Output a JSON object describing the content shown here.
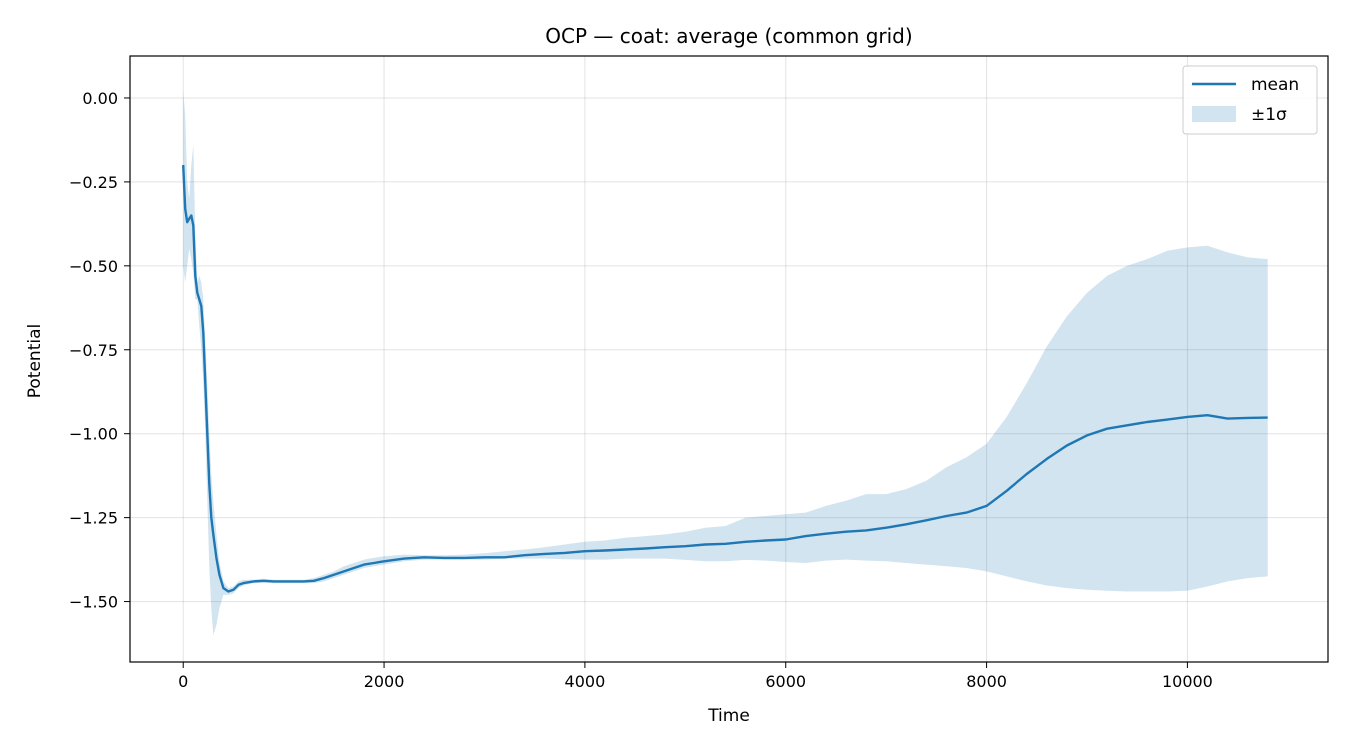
{
  "chart_data": {
    "type": "line",
    "title": "OCP — coat: average (common grid)",
    "xlabel": "Time",
    "ylabel": "Potential",
    "xlim": [
      -530,
      11400
    ],
    "ylim": [
      -1.68,
      0.125
    ],
    "xticks": [
      0,
      2000,
      4000,
      6000,
      8000,
      10000
    ],
    "yticks": [
      0.0,
      -0.25,
      -0.5,
      -0.75,
      -1.0,
      -1.25,
      -1.5
    ],
    "xtick_labels": [
      "0",
      "2000",
      "4000",
      "6000",
      "8000",
      "10000"
    ],
    "ytick_labels": [
      "0.00",
      "−0.25",
      "−0.50",
      "−0.75",
      "−1.00",
      "−1.25",
      "−1.50"
    ],
    "grid": true,
    "legend_position": "top-right",
    "colors": {
      "mean": "#1f77b4",
      "band": "#1f77b4",
      "band_opacity": 0.2
    },
    "series": [
      {
        "name": "mean",
        "kind": "line",
        "x": [
          0,
          20,
          40,
          60,
          80,
          100,
          120,
          140,
          160,
          180,
          200,
          220,
          240,
          260,
          280,
          300,
          330,
          360,
          400,
          450,
          500,
          550,
          600,
          700,
          800,
          900,
          1000,
          1100,
          1200,
          1300,
          1400,
          1500,
          1600,
          1700,
          1800,
          1900,
          2000,
          2200,
          2400,
          2600,
          2800,
          3000,
          3200,
          3400,
          3600,
          3800,
          4000,
          4200,
          4400,
          4600,
          4800,
          5000,
          5200,
          5400,
          5600,
          5800,
          6000,
          6200,
          6400,
          6600,
          6800,
          7000,
          7200,
          7400,
          7600,
          7800,
          8000,
          8200,
          8400,
          8600,
          8800,
          9000,
          9200,
          9400,
          9600,
          9800,
          10000,
          10200,
          10400,
          10600,
          10800
        ],
        "values": [
          -0.2,
          -0.33,
          -0.37,
          -0.36,
          -0.35,
          -0.38,
          -0.53,
          -0.58,
          -0.6,
          -0.62,
          -0.7,
          -0.85,
          -1.0,
          -1.15,
          -1.25,
          -1.3,
          -1.37,
          -1.42,
          -1.46,
          -1.47,
          -1.465,
          -1.45,
          -1.445,
          -1.44,
          -1.438,
          -1.44,
          -1.44,
          -1.44,
          -1.44,
          -1.438,
          -1.43,
          -1.42,
          -1.41,
          -1.4,
          -1.39,
          -1.385,
          -1.38,
          -1.372,
          -1.368,
          -1.37,
          -1.37,
          -1.368,
          -1.368,
          -1.362,
          -1.358,
          -1.355,
          -1.35,
          -1.348,
          -1.345,
          -1.342,
          -1.338,
          -1.335,
          -1.33,
          -1.328,
          -1.322,
          -1.318,
          -1.315,
          -1.305,
          -1.298,
          -1.292,
          -1.288,
          -1.28,
          -1.27,
          -1.258,
          -1.245,
          -1.235,
          -1.215,
          -1.17,
          -1.12,
          -1.075,
          -1.035,
          -1.005,
          -0.985,
          -0.975,
          -0.965,
          -0.958,
          -0.95,
          -0.945,
          -0.955,
          -0.953,
          -0.952
        ]
      },
      {
        "name": "±1σ",
        "kind": "band",
        "x": [
          0,
          20,
          40,
          60,
          80,
          100,
          120,
          140,
          160,
          180,
          200,
          220,
          240,
          260,
          280,
          300,
          330,
          360,
          400,
          450,
          500,
          550,
          600,
          700,
          800,
          900,
          1000,
          1100,
          1200,
          1300,
          1400,
          1500,
          1600,
          1700,
          1800,
          1900,
          2000,
          2200,
          2400,
          2600,
          2800,
          3000,
          3200,
          3400,
          3600,
          3800,
          4000,
          4200,
          4400,
          4600,
          4800,
          5000,
          5200,
          5400,
          5600,
          5800,
          6000,
          6200,
          6400,
          6600,
          6800,
          7000,
          7200,
          7400,
          7600,
          7800,
          8000,
          8200,
          8400,
          8600,
          8800,
          9000,
          9200,
          9400,
          9600,
          9800,
          10000,
          10200,
          10400,
          10600,
          10800
        ],
        "upper": [
          0.02,
          -0.05,
          -0.25,
          -0.3,
          -0.2,
          -0.14,
          -0.4,
          -0.55,
          -0.53,
          -0.55,
          -0.6,
          -0.72,
          -0.85,
          -1.0,
          -1.12,
          -1.2,
          -1.3,
          -1.38,
          -1.44,
          -1.46,
          -1.455,
          -1.44,
          -1.435,
          -1.435,
          -1.432,
          -1.435,
          -1.435,
          -1.435,
          -1.435,
          -1.43,
          -1.42,
          -1.41,
          -1.395,
          -1.385,
          -1.375,
          -1.37,
          -1.365,
          -1.36,
          -1.362,
          -1.362,
          -1.36,
          -1.356,
          -1.35,
          -1.345,
          -1.338,
          -1.33,
          -1.322,
          -1.318,
          -1.31,
          -1.305,
          -1.3,
          -1.292,
          -1.28,
          -1.275,
          -1.25,
          -1.245,
          -1.24,
          -1.235,
          -1.215,
          -1.2,
          -1.18,
          -1.18,
          -1.165,
          -1.14,
          -1.1,
          -1.07,
          -1.03,
          -0.95,
          -0.85,
          -0.74,
          -0.65,
          -0.58,
          -0.53,
          -0.5,
          -0.48,
          -0.455,
          -0.445,
          -0.44,
          -0.46,
          -0.475,
          -0.48
        ],
        "lower": [
          -0.5,
          -0.55,
          -0.5,
          -0.45,
          -0.48,
          -0.52,
          -0.6,
          -0.6,
          -0.68,
          -0.75,
          -0.85,
          -1.0,
          -1.2,
          -1.4,
          -1.52,
          -1.6,
          -1.57,
          -1.52,
          -1.48,
          -1.48,
          -1.475,
          -1.46,
          -1.452,
          -1.445,
          -1.444,
          -1.445,
          -1.445,
          -1.445,
          -1.445,
          -1.445,
          -1.44,
          -1.43,
          -1.42,
          -1.41,
          -1.4,
          -1.395,
          -1.39,
          -1.38,
          -1.375,
          -1.375,
          -1.375,
          -1.375,
          -1.372,
          -1.372,
          -1.372,
          -1.374,
          -1.375,
          -1.375,
          -1.372,
          -1.372,
          -1.372,
          -1.376,
          -1.38,
          -1.38,
          -1.376,
          -1.378,
          -1.382,
          -1.385,
          -1.378,
          -1.375,
          -1.378,
          -1.38,
          -1.385,
          -1.39,
          -1.395,
          -1.4,
          -1.41,
          -1.425,
          -1.44,
          -1.452,
          -1.46,
          -1.465,
          -1.468,
          -1.47,
          -1.47,
          -1.47,
          -1.468,
          -1.455,
          -1.44,
          -1.43,
          -1.425
        ]
      }
    ]
  }
}
